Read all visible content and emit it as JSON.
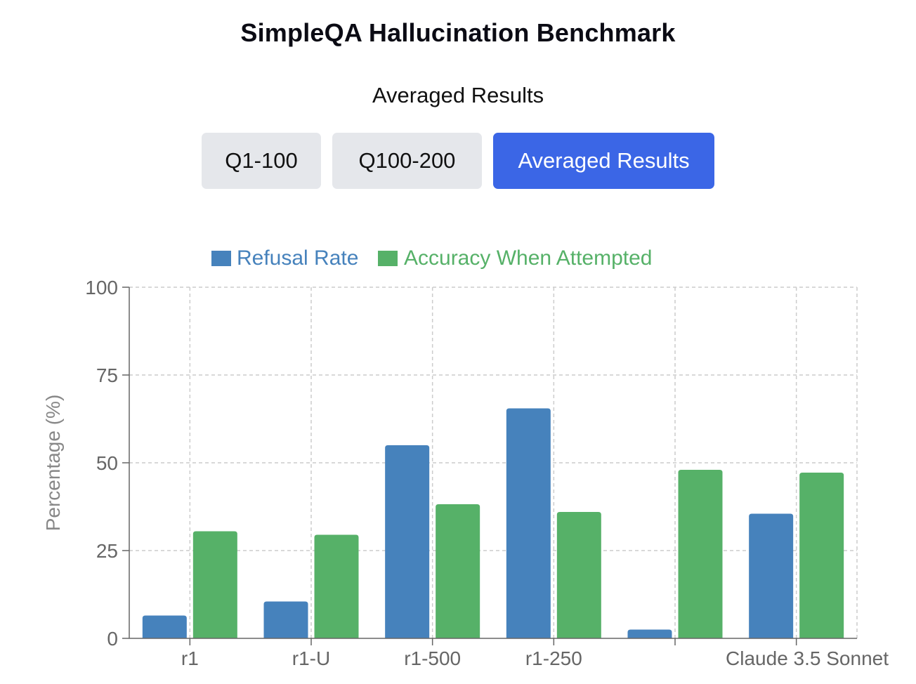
{
  "title": "SimpleQA Hallucination Benchmark",
  "view_title": "Averaged Results",
  "tabs": [
    {
      "label": "Q1-100",
      "active": false
    },
    {
      "label": "Q100-200",
      "active": false
    },
    {
      "label": "Averaged Results",
      "active": true
    }
  ],
  "colors": {
    "refusal": "#4682bc",
    "accuracy": "#56b168",
    "tab_active": "#3b66e6",
    "tab_inactive": "#e5e7eb",
    "grid": "#cccccc",
    "axis": "#666666"
  },
  "chart_data": {
    "type": "bar",
    "categories": [
      "r1",
      "r1-U",
      "r1-500",
      "r1-250",
      "",
      "Claude 3.5 Sonnet"
    ],
    "series": [
      {
        "name": "Refusal Rate",
        "values": [
          6.5,
          10.5,
          55,
          65.5,
          2.5,
          35.5
        ]
      },
      {
        "name": "Accuracy When Attempted",
        "values": [
          30.5,
          29.5,
          38.2,
          36,
          48,
          47.2
        ]
      }
    ],
    "xlabel": "",
    "ylabel": "Percentage (%)",
    "ylim": [
      0,
      100
    ],
    "yticks": [
      0,
      25,
      50,
      75,
      100
    ],
    "grid": true,
    "legend": "top-center"
  }
}
